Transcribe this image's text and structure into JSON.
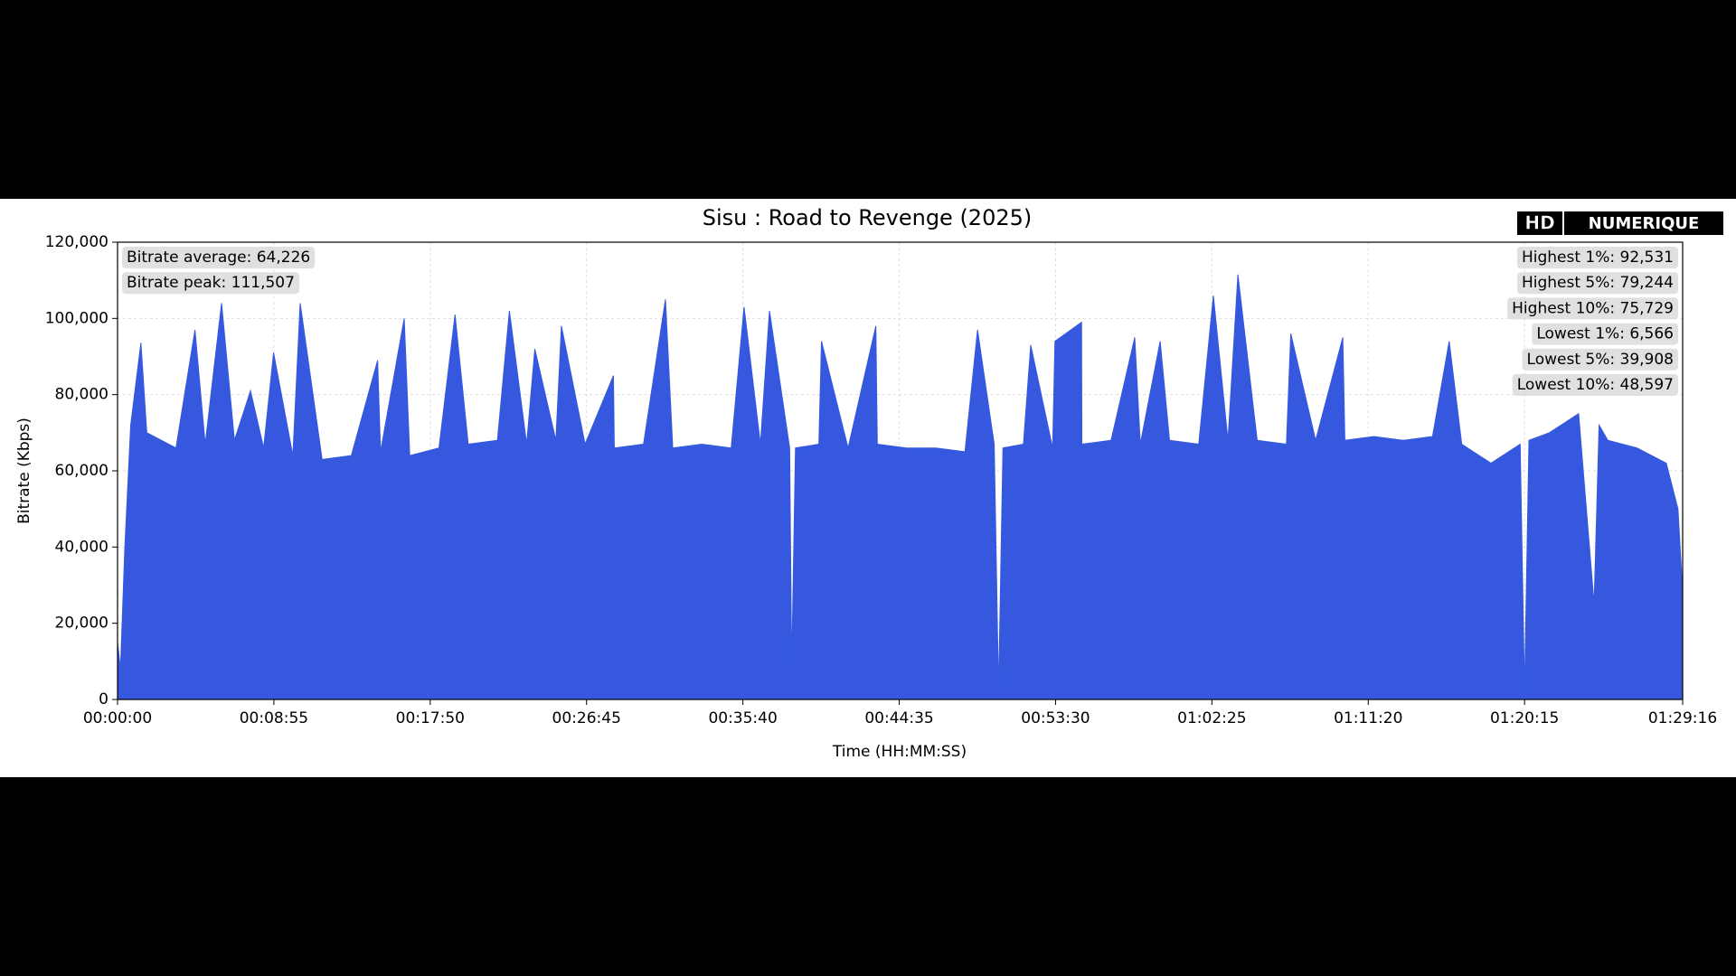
{
  "chart_data": {
    "type": "area",
    "title": "Sisu : Road to Revenge (2025)",
    "xlabel": "Time (HH:MM:SS)",
    "ylabel": "Bitrate (Kbps)",
    "color": "#3558de",
    "grid": true,
    "xlim": [
      0,
      5356
    ],
    "ylim": [
      0,
      120000
    ],
    "xticks": [
      {
        "value": 0,
        "label": "00:00:00"
      },
      {
        "value": 535,
        "label": "00:08:55"
      },
      {
        "value": 1070,
        "label": "00:17:50"
      },
      {
        "value": 1605,
        "label": "00:26:45"
      },
      {
        "value": 2140,
        "label": "00:35:40"
      },
      {
        "value": 2675,
        "label": "00:44:35"
      },
      {
        "value": 3210,
        "label": "00:53:30"
      },
      {
        "value": 3745,
        "label": "01:02:25"
      },
      {
        "value": 4280,
        "label": "01:11:20"
      },
      {
        "value": 4815,
        "label": "01:20:15"
      },
      {
        "value": 5356,
        "label": "01:29:16"
      }
    ],
    "yticks": [
      {
        "value": 0,
        "label": "0"
      },
      {
        "value": 20000,
        "label": "20,000"
      },
      {
        "value": 40000,
        "label": "40,000"
      },
      {
        "value": 60000,
        "label": "60,000"
      },
      {
        "value": 80000,
        "label": "80,000"
      },
      {
        "value": 100000,
        "label": "100,000"
      },
      {
        "value": 120000,
        "label": "120,000"
      }
    ],
    "x": [
      0,
      10,
      25,
      45,
      80,
      100,
      200,
      265,
      300,
      356,
      400,
      455,
      500,
      534,
      600,
      625,
      700,
      800,
      890,
      900,
      981,
      1000,
      1100,
      1155,
      1200,
      1300,
      1341,
      1400,
      1428,
      1500,
      1519,
      1600,
      1697,
      1700,
      1800,
      1875,
      1900,
      2000,
      2100,
      2144,
      2200,
      2231,
      2300,
      2307,
      2320,
      2400,
      2409,
      2500,
      2595,
      2600,
      2700,
      2800,
      2900,
      2943,
      3000,
      3015,
      3030,
      3100,
      3125,
      3200,
      3208,
      3299,
      3300,
      3400,
      3481,
      3500,
      3568,
      3600,
      3700,
      3750,
      3800,
      3834,
      3900,
      4000,
      4015,
      4100,
      4193,
      4200,
      4300,
      4400,
      4500,
      4557,
      4600,
      4700,
      4800,
      4815,
      4830,
      4900,
      5000,
      5053,
      5070,
      5100,
      5200,
      5300,
      5340,
      5356
    ],
    "values": [
      15000,
      8000,
      40000,
      72000,
      93600,
      70000,
      66000,
      97000,
      67000,
      104000,
      68000,
      81000,
      66000,
      91000,
      64000,
      104000,
      63000,
      64000,
      89000,
      65000,
      100000,
      64000,
      66000,
      101000,
      67000,
      68000,
      102000,
      67000,
      92000,
      68000,
      98000,
      67000,
      85000,
      66000,
      67000,
      105000,
      66000,
      67000,
      66000,
      103000,
      67000,
      102000,
      66000,
      8000,
      66000,
      67000,
      94000,
      66000,
      98000,
      67000,
      66000,
      66000,
      65000,
      97000,
      67000,
      2000,
      66000,
      67000,
      93000,
      66000,
      94000,
      99000,
      67000,
      68000,
      95000,
      67000,
      94000,
      68000,
      67000,
      106000,
      68000,
      111500,
      68000,
      67000,
      96000,
      68000,
      95000,
      68000,
      69000,
      68000,
      69000,
      94000,
      67000,
      62000,
      67000,
      2000,
      68000,
      70000,
      75000,
      25000,
      72000,
      68000,
      66000,
      62000,
      50000,
      28000
    ],
    "annotations": [
      "Bitrate average: 64,226",
      "Bitrate peak: 111,507"
    ],
    "stats": [
      "Highest 1%: 92,531",
      "Highest 5%: 79,244",
      "Highest 10%: 75,729",
      "Lowest 1%: 6,566",
      "Lowest 5%: 39,908",
      "Lowest 10%: 48,597"
    ]
  },
  "logo": {
    "left": "HD",
    "right": "NUMERIQUE"
  }
}
